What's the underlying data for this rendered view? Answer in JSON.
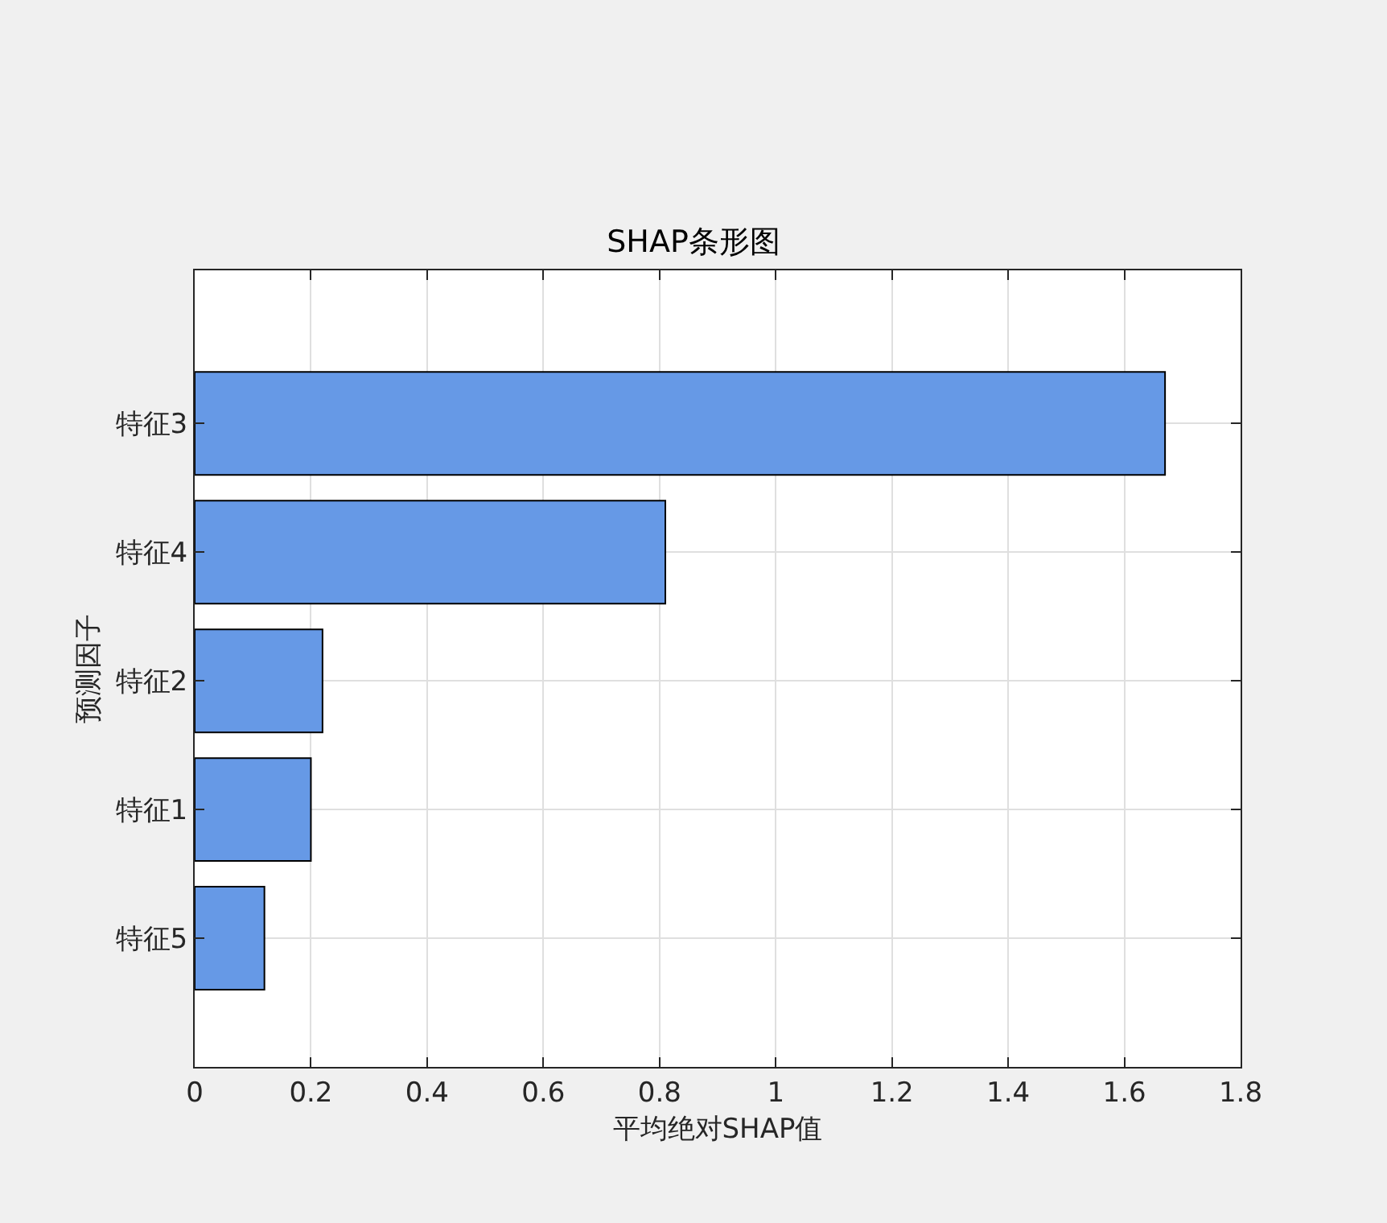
{
  "chart_data": {
    "type": "bar",
    "orientation": "horizontal",
    "title": "SHAP条形图",
    "xlabel": "平均绝对SHAP值",
    "ylabel": "预测因子",
    "categories": [
      "特征3",
      "特征4",
      "特征2",
      "特征1",
      "特征5"
    ],
    "values": [
      1.67,
      0.81,
      0.22,
      0.2,
      0.12
    ],
    "color": "#6699e6",
    "xlim": [
      0,
      1.8
    ],
    "xticks": [
      0,
      0.2,
      0.4,
      0.6,
      0.8,
      1,
      1.2,
      1.4,
      1.6,
      1.8
    ],
    "grid": true
  }
}
